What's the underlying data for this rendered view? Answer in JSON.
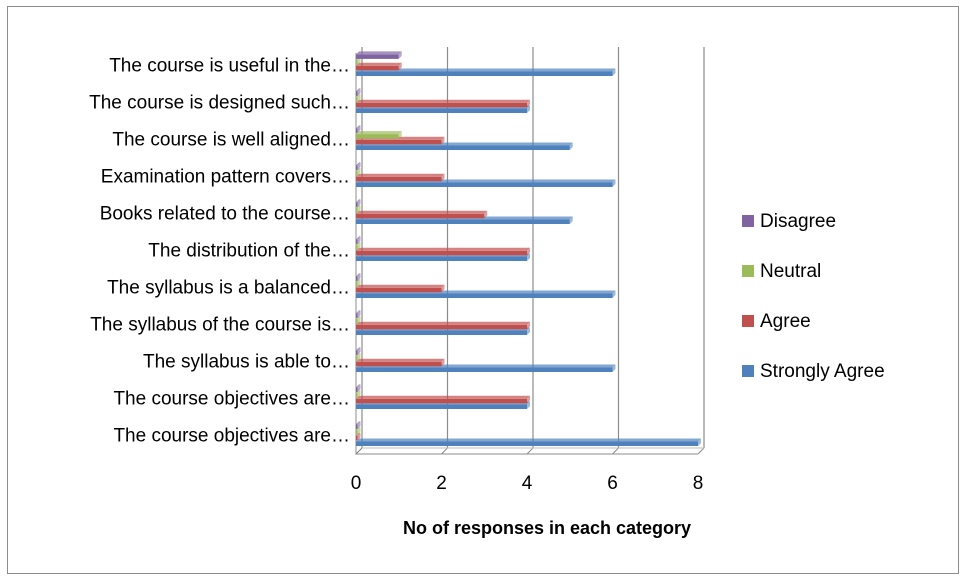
{
  "chart_data": {
    "type": "bar",
    "orientation": "horizontal",
    "categories": [
      "The course objectives are…",
      "The course objectives are…",
      "The syllabus is able to…",
      "The syllabus of the course is…",
      "The syllabus is a balanced…",
      "The distribution of the…",
      "Books related to the course…",
      "Examination pattern covers…",
      "The course is well aligned…",
      "The course is designed such…",
      "The course is useful in the…"
    ],
    "series": [
      {
        "name": "Strongly Agree",
        "color": "#4f81bd",
        "values": [
          8,
          4,
          6,
          4,
          6,
          4,
          5,
          6,
          5,
          4,
          6
        ]
      },
      {
        "name": "Agree",
        "color": "#c0504d",
        "values": [
          0,
          4,
          2,
          4,
          2,
          4,
          3,
          2,
          2,
          4,
          1
        ]
      },
      {
        "name": "Neutral",
        "color": "#9bbb59",
        "values": [
          0,
          0,
          0,
          0,
          0,
          0,
          0,
          0,
          1,
          0,
          0
        ]
      },
      {
        "name": "Disagree",
        "color": "#8064a2",
        "values": [
          0,
          0,
          0,
          0,
          0,
          0,
          0,
          0,
          0,
          0,
          1
        ]
      }
    ],
    "legend_order": [
      "Disagree",
      "Neutral",
      "Agree",
      "Strongly Agree"
    ],
    "xlim": [
      0,
      8
    ],
    "xticks": [
      "0",
      "2",
      "4",
      "6",
      "8"
    ],
    "xlabel": "No of responses in each category",
    "ylabel": "",
    "title": "",
    "grid": "vertical major gridlines",
    "legend_position": "right",
    "style": "3-D clustered bar"
  }
}
